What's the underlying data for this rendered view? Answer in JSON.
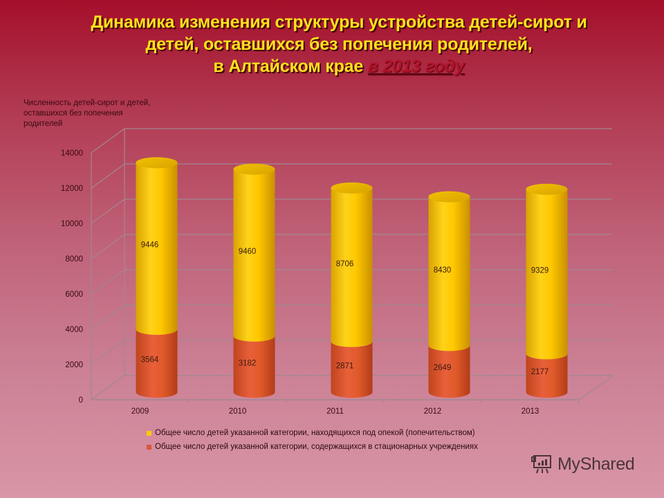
{
  "title": {
    "line1": "Динамика  изменения структуры устройства детей-сирот и",
    "line2": "детей, оставшихся без попечения родителей,",
    "line3_main": "в Алтайском крае ",
    "line3_highlight": "в 2013 году"
  },
  "colors": {
    "series_guardianship": "#ffc800",
    "series_institutions": "#e05a2a",
    "title_text": "#ffe21a",
    "title_highlight": "#b01428"
  },
  "legend": {
    "items": [
      {
        "label": "Общее число детей указанной категории, находящихся под опекой (попечительством)",
        "color": "#ffc800"
      },
      {
        "label": "Общее число детей указанной категории, содержащихся в стационарных  учреждениях",
        "color": "#d9573a"
      }
    ]
  },
  "watermark": {
    "icon": "presentation-board-icon",
    "text": "MyShared"
  },
  "chart_data": {
    "type": "bar",
    "subtype": "stacked-3d-cylinder",
    "title": "Динамика изменения структуры устройства детей-сирот и детей, оставшихся без попечения родителей, в Алтайском крае в 2013 году",
    "xlabel": "",
    "ylabel": "Численность детей-сирот и детей, оставшихся без попечения родителей",
    "categories": [
      "2009",
      "2010",
      "2011",
      "2012",
      "2013"
    ],
    "series": [
      {
        "name": "Общее число детей указанной категории, содержащихся в стационарных  учреждениях",
        "values": [
          3564,
          3182,
          2871,
          2649,
          2177
        ],
        "color": "#e05a2a"
      },
      {
        "name": "Общее число детей указанной категории, находящихся под опекой (попечительством)",
        "values": [
          9446,
          9460,
          8706,
          8430,
          9329
        ],
        "color": "#ffc800"
      }
    ],
    "y_ticks": [
      "0",
      "2000",
      "4000",
      "6000",
      "8000",
      "10000",
      "12000",
      "14000"
    ],
    "ylim": [
      0,
      14000
    ],
    "grid": true,
    "legend_position": "bottom"
  }
}
